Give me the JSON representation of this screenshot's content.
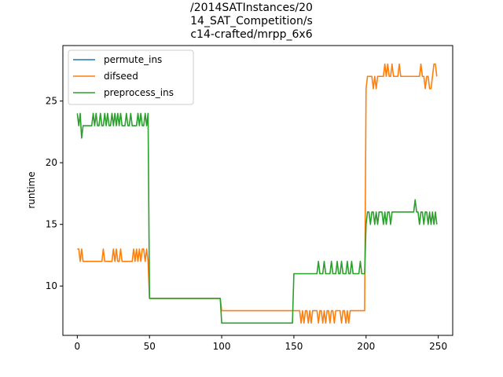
{
  "chart_data": {
    "type": "line",
    "title_lines": [
      "/2014SATInstances/20",
      "14_SAT_Competition/s",
      "c14-crafted/mrpp_6x6"
    ],
    "xlabel": "",
    "ylabel": "runtime",
    "xlim": [
      -10,
      260
    ],
    "ylim": [
      6,
      29.5
    ],
    "xticks": [
      0,
      50,
      100,
      150,
      200,
      250
    ],
    "yticks": [
      10,
      15,
      20,
      25
    ],
    "grid": false,
    "legend_position": "top-left",
    "series": [
      {
        "name": "permute_ins",
        "color": "#1f77b4",
        "segments": [
          [
            0,
            249,
            0
          ]
        ],
        "values": []
      },
      {
        "name": "difseed",
        "color": "#ff7f0e",
        "values": [
          13,
          13,
          12,
          13,
          12,
          12,
          12,
          12,
          12,
          12,
          12,
          12,
          12,
          12,
          12,
          12,
          12,
          12,
          13,
          12,
          12,
          12,
          12,
          12,
          12,
          13,
          12,
          13,
          12,
          12,
          13,
          12,
          12,
          12,
          12,
          12,
          12,
          12,
          12,
          13,
          12,
          13,
          12,
          13,
          12,
          13,
          13,
          12,
          13,
          12,
          9,
          9,
          9,
          9,
          9,
          9,
          9,
          9,
          9,
          9,
          9,
          9,
          9,
          9,
          9,
          9,
          9,
          9,
          9,
          9,
          9,
          9,
          9,
          9,
          9,
          9,
          9,
          9,
          9,
          9,
          9,
          9,
          9,
          9,
          9,
          9,
          9,
          9,
          9,
          9,
          9,
          9,
          9,
          9,
          9,
          9,
          9,
          9,
          9,
          9,
          8,
          8,
          8,
          8,
          8,
          8,
          8,
          8,
          8,
          8,
          8,
          8,
          8,
          8,
          8,
          8,
          8,
          8,
          8,
          8,
          8,
          8,
          8,
          8,
          8,
          8,
          8,
          8,
          8,
          8,
          8,
          8,
          8,
          8,
          8,
          8,
          8,
          8,
          8,
          8,
          8,
          8,
          8,
          8,
          8,
          8,
          8,
          8,
          8,
          8,
          8,
          8,
          8,
          8,
          8,
          7,
          8,
          7,
          8,
          8,
          7,
          8,
          7,
          8,
          8,
          8,
          8,
          7,
          8,
          8,
          7,
          8,
          7,
          8,
          8,
          7,
          8,
          8,
          7,
          8,
          8,
          8,
          8,
          7,
          8,
          8,
          7,
          8,
          7,
          8,
          8,
          8,
          8,
          8,
          8,
          8,
          8,
          8,
          8,
          8,
          26,
          27,
          27,
          27,
          27,
          26,
          27,
          26,
          27,
          27,
          27,
          27,
          27,
          28,
          27,
          28,
          27,
          27,
          28,
          27,
          27,
          27,
          27,
          28,
          27,
          27,
          27,
          27,
          27,
          27,
          27,
          27,
          27,
          27,
          27,
          27,
          27,
          27,
          28,
          27,
          27,
          26,
          27,
          27,
          26,
          26,
          27,
          28,
          28,
          27
        ]
      },
      {
        "name": "preprocess_ins",
        "color": "#2ca02c",
        "values": [
          24,
          23,
          24,
          22,
          23,
          23,
          23,
          23,
          23,
          23,
          23,
          24,
          23,
          24,
          23,
          23,
          24,
          23,
          23,
          24,
          23,
          24,
          23,
          23,
          24,
          23,
          24,
          23,
          24,
          23,
          24,
          23,
          23,
          23,
          24,
          23,
          23,
          24,
          23,
          23,
          23,
          23,
          24,
          23,
          24,
          23,
          23,
          24,
          23,
          24,
          9,
          9,
          9,
          9,
          9,
          9,
          9,
          9,
          9,
          9,
          9,
          9,
          9,
          9,
          9,
          9,
          9,
          9,
          9,
          9,
          9,
          9,
          9,
          9,
          9,
          9,
          9,
          9,
          9,
          9,
          9,
          9,
          9,
          9,
          9,
          9,
          9,
          9,
          9,
          9,
          9,
          9,
          9,
          9,
          9,
          9,
          9,
          9,
          9,
          9,
          7,
          7,
          7,
          7,
          7,
          7,
          7,
          7,
          7,
          7,
          7,
          7,
          7,
          7,
          7,
          7,
          7,
          7,
          7,
          7,
          7,
          7,
          7,
          7,
          7,
          7,
          7,
          7,
          7,
          7,
          7,
          7,
          7,
          7,
          7,
          7,
          7,
          7,
          7,
          7,
          7,
          7,
          7,
          7,
          7,
          7,
          7,
          7,
          7,
          7,
          11,
          11,
          11,
          11,
          11,
          11,
          11,
          11,
          11,
          11,
          11,
          11,
          11,
          11,
          11,
          11,
          11,
          12,
          11,
          11,
          11,
          12,
          11,
          11,
          11,
          11,
          12,
          11,
          11,
          11,
          12,
          11,
          11,
          12,
          11,
          11,
          11,
          12,
          11,
          11,
          12,
          11,
          11,
          11,
          11,
          11,
          12,
          11,
          11,
          11,
          15,
          16,
          16,
          15,
          16,
          16,
          15,
          16,
          15,
          16,
          16,
          16,
          15,
          16,
          15,
          16,
          16,
          15,
          16,
          16,
          16,
          16,
          16,
          16,
          16,
          16,
          16,
          16,
          16,
          16,
          16,
          16,
          16,
          16,
          17,
          16,
          16,
          15,
          16,
          16,
          15,
          16,
          16,
          15,
          16,
          15,
          16,
          15,
          16,
          15
        ]
      }
    ]
  }
}
